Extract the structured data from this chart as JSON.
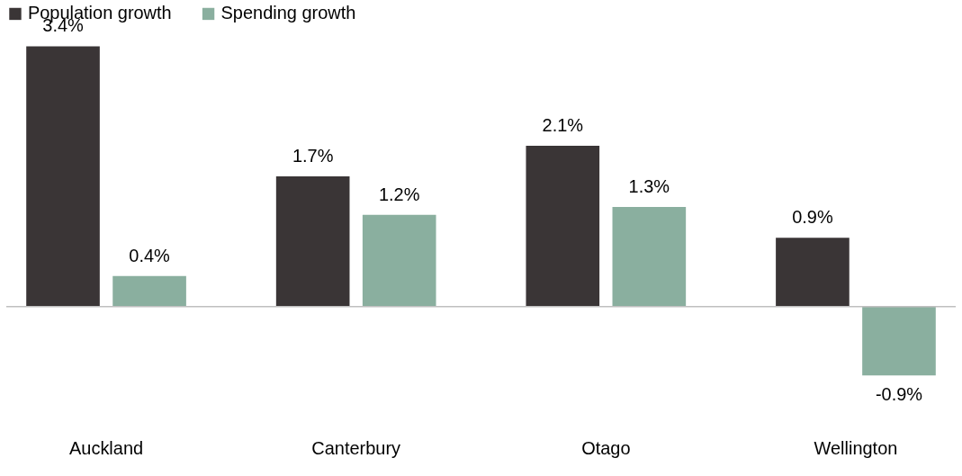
{
  "chart_data": {
    "type": "bar",
    "categories": [
      "Auckland",
      "Canterbury",
      "Otago",
      "Wellington"
    ],
    "series": [
      {
        "name": "Population growth",
        "color": "#3a3536",
        "values": [
          3.4,
          1.7,
          2.1,
          0.9
        ],
        "value_labels": [
          "3.4%",
          "1.7%",
          "2.1%",
          "0.9%"
        ]
      },
      {
        "name": "Spending growth",
        "color": "#8aaf9f",
        "values": [
          0.4,
          1.2,
          1.3,
          -0.9
        ],
        "value_labels": [
          "0.4%",
          "1.2%",
          "1.3%",
          "-0.9%"
        ]
      }
    ],
    "legend": "top",
    "grid": false
  }
}
